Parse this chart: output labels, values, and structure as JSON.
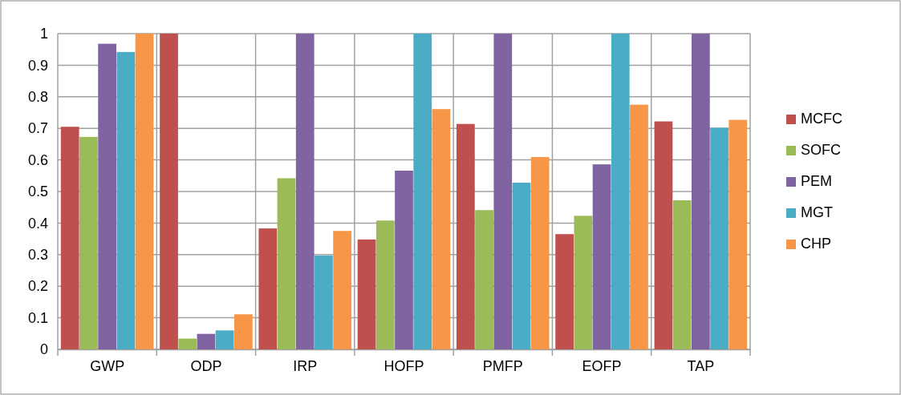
{
  "chart_data": {
    "type": "bar",
    "categories": [
      "GWP",
      "ODP",
      "IRP",
      "HOFP",
      "PMFP",
      "EOFP",
      "TAP"
    ],
    "series": [
      {
        "name": "MCFC",
        "color": "#c0504d",
        "values": [
          0.705,
          1,
          0.383,
          0.348,
          0.714,
          0.365,
          0.722
        ]
      },
      {
        "name": "SOFC",
        "color": "#9bbb59",
        "values": [
          0.673,
          0.034,
          0.542,
          0.408,
          0.441,
          0.423,
          0.472
        ]
      },
      {
        "name": "PEM",
        "color": "#8064a2",
        "values": [
          0.968,
          0.049,
          1,
          0.566,
          1,
          0.586,
          1
        ]
      },
      {
        "name": "MGT",
        "color": "#4bacc6",
        "values": [
          0.942,
          0.06,
          0.297,
          1,
          0.528,
          1,
          0.702
        ]
      },
      {
        "name": "CHP",
        "color": "#f79646",
        "values": [
          1,
          0.111,
          0.375,
          0.761,
          0.609,
          0.775,
          0.727
        ]
      }
    ],
    "ylim": [
      0,
      1
    ],
    "yticks": [
      0,
      0.1,
      0.2,
      0.3,
      0.4,
      0.5,
      0.6,
      0.7,
      0.8,
      0.9,
      1
    ],
    "grid": true,
    "legend": "right"
  }
}
